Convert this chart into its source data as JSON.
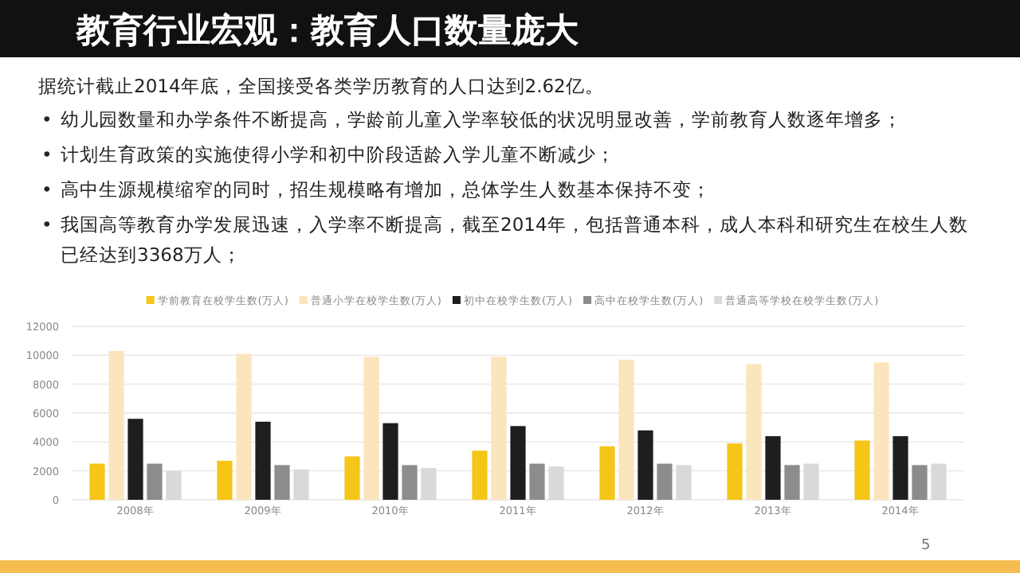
{
  "chart_data": {
    "type": "bar",
    "title": "教育行业宏观：教育人口数量庞大",
    "annotations": [
      "据统计截止2014年底，全国接受各类学历教育的人口达到2.62亿。",
      "•幼儿园数量和办学条件不断提高，学龄前儿童入学率较低的状况明显改善，学前教育人数逐年增多；",
      "•计划生育政策的实施使得小学和初中阶段适龄入学儿童不断减少；",
      "•高中生源规模缩窄的同时，招生规模略有增加，总体学生人数基本保持不变；",
      "•我国高等教育办学发展迅速，入学率不断提高，截至2014年，包括普通本科，成人本科和研究生在校生人数已经达到3368万人；",
      "5"
    ],
    "categories": [
      "2008年",
      "2009年",
      "2010年",
      "2011年",
      "2012年",
      "2013年",
      "2014年"
    ],
    "series": [
      {
        "name": "学前教育在校学生数(万人)",
        "color": "#f5c518",
        "values": [
          2500,
          2700,
          3000,
          3400,
          3700,
          3900,
          4100
        ]
      },
      {
        "name": "普通小学在校学生数(万人)",
        "color": "#fbe5bd",
        "values": [
          10300,
          10100,
          9900,
          9900,
          9700,
          9400,
          9500
        ]
      },
      {
        "name": "初中在校学生数(万人)",
        "color": "#1e1e1e",
        "values": [
          5600,
          5400,
          5300,
          5100,
          4800,
          4400,
          4400
        ]
      },
      {
        "name": "高中在校学生数(万人)",
        "color": "#8c8c8c",
        "values": [
          2500,
          2400,
          2400,
          2500,
          2500,
          2400,
          2400
        ]
      },
      {
        "name": "普通高等学校在校学生数(万人)",
        "color": "#d9d9d9",
        "values": [
          2000,
          2100,
          2200,
          2300,
          2400,
          2500,
          2500
        ]
      }
    ],
    "ylim": [
      0,
      12000
    ],
    "yticks": [
      0,
      2000,
      4000,
      6000,
      8000,
      10000,
      12000
    ],
    "grid": "y",
    "legend": "top"
  }
}
